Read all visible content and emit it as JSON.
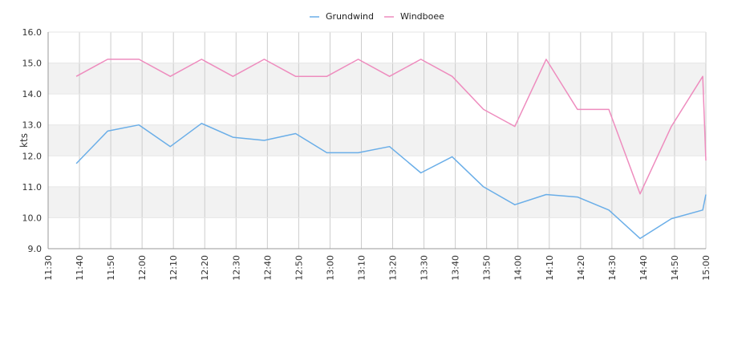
{
  "chart_data": {
    "type": "line",
    "ylabel": "kts",
    "ylim": [
      9.0,
      16.0
    ],
    "y_ticks": [
      "9.0",
      "10.0",
      "11.0",
      "12.0",
      "13.0",
      "14.0",
      "15.0",
      "16.0"
    ],
    "x_ticks": [
      "11:30",
      "11:40",
      "11:50",
      "12:00",
      "12:10",
      "12:20",
      "12:30",
      "12:40",
      "12:50",
      "13:00",
      "13:10",
      "13:20",
      "13:30",
      "13:40",
      "13:50",
      "14:00",
      "14:10",
      "14:20",
      "14:30",
      "14:40",
      "14:50",
      "15:00"
    ],
    "x_range": [
      "11:30",
      "15:00"
    ],
    "grid": "vertical lines at x ticks; alternating light-gray horizontal bands",
    "legend_placement": "top-center",
    "series": [
      {
        "name": "Grundwind",
        "color": "#6aaee8",
        "points": [
          [
            "11:39",
            11.75
          ],
          [
            "11:49",
            12.8
          ],
          [
            "11:59",
            13.0
          ],
          [
            "12:09",
            12.3
          ],
          [
            "12:19",
            13.05
          ],
          [
            "12:29",
            12.6
          ],
          [
            "12:39",
            12.5
          ],
          [
            "12:49",
            12.72
          ],
          [
            "12:59",
            12.1
          ],
          [
            "13:09",
            12.1
          ],
          [
            "13:19",
            12.3
          ],
          [
            "13:29",
            11.45
          ],
          [
            "13:39",
            11.97
          ],
          [
            "13:49",
            11.0
          ],
          [
            "13:59",
            10.42
          ],
          [
            "14:09",
            10.75
          ],
          [
            "14:19",
            10.67
          ],
          [
            "14:29",
            10.25
          ],
          [
            "14:39",
            9.33
          ],
          [
            "14:49",
            9.97
          ],
          [
            "14:59",
            10.25
          ],
          [
            "15:00",
            10.75
          ]
        ]
      },
      {
        "name": "Windboee",
        "color": "#ee8cbe",
        "points": [
          [
            "11:39",
            14.57
          ],
          [
            "11:49",
            15.12
          ],
          [
            "11:59",
            15.12
          ],
          [
            "12:09",
            14.57
          ],
          [
            "12:19",
            15.12
          ],
          [
            "12:29",
            14.57
          ],
          [
            "12:39",
            15.12
          ],
          [
            "12:49",
            14.57
          ],
          [
            "12:59",
            14.57
          ],
          [
            "13:09",
            15.12
          ],
          [
            "13:19",
            14.57
          ],
          [
            "13:29",
            15.12
          ],
          [
            "13:39",
            14.57
          ],
          [
            "13:49",
            13.5
          ],
          [
            "13:59",
            12.95
          ],
          [
            "14:09",
            15.12
          ],
          [
            "14:19",
            13.5
          ],
          [
            "14:29",
            13.5
          ],
          [
            "14:39",
            10.77
          ],
          [
            "14:49",
            12.95
          ],
          [
            "14:59",
            14.57
          ],
          [
            "15:00",
            11.85
          ]
        ]
      }
    ]
  }
}
